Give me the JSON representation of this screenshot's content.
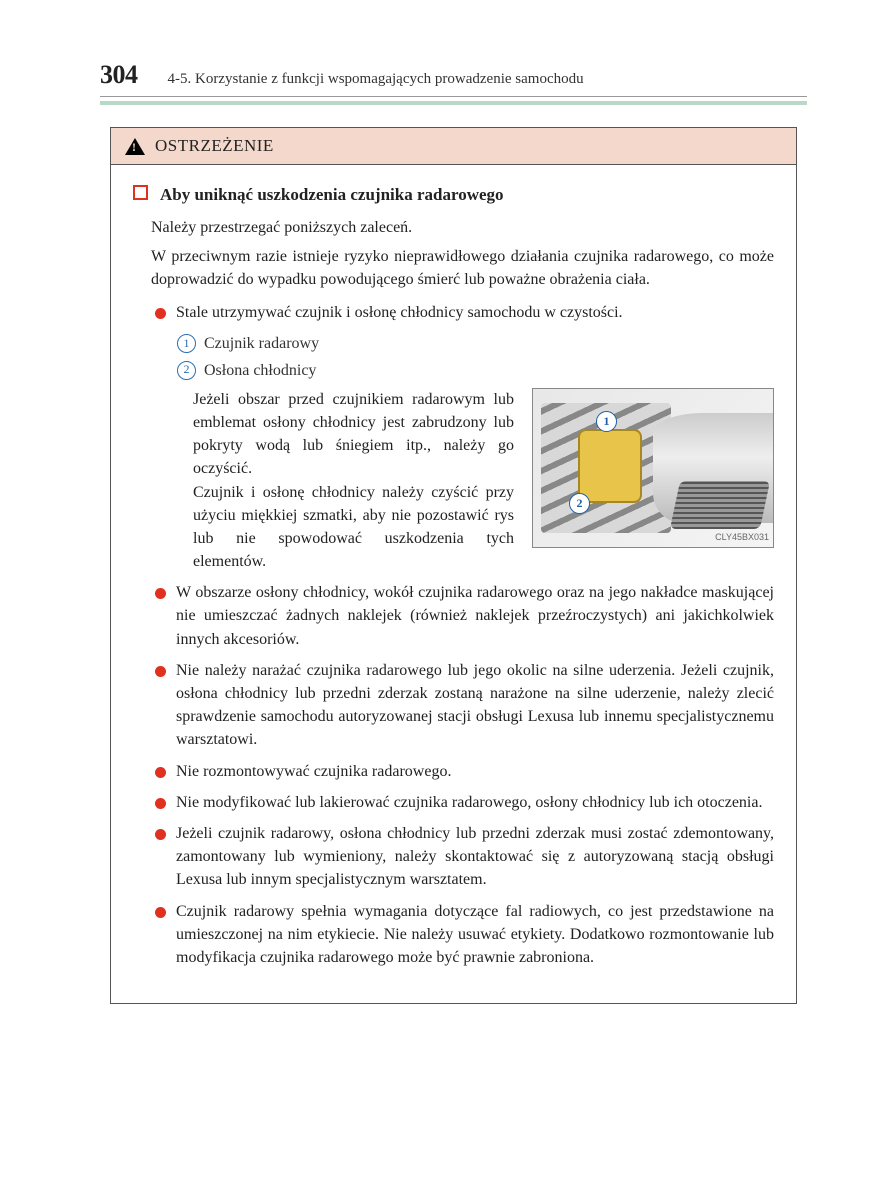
{
  "header": {
    "page_number": "304",
    "section": "4-5. Korzystanie z funkcji wspomagających prowadzenie samochodu"
  },
  "warning": {
    "label": "OSTRZEŻENIE",
    "topic_title": "Aby uniknąć uszkodzenia czujnika radarowego",
    "intro_1": "Należy przestrzegać poniższych zaleceń.",
    "intro_2": "W przeciwnym razie istnieje ryzyko nieprawidłowego działania czujnika radarowego, co może doprowadzić do wypadku powodującego śmierć lub poważne obrażenia ciała.",
    "bullets": {
      "b0": "Stale utrzymywać czujnik i osłonę chłodnicy samochodu w czystości.",
      "numbered": {
        "n1": "Czujnik radarowy",
        "n2": "Osłona chłodnicy"
      },
      "figure_text_1": "Jeżeli obszar przed czujnikiem radarowym lub emblemat osłony chłodnicy jest zabrudzony lub pokryty wodą lub śniegiem itp., należy go oczyścić.",
      "figure_text_2": "Czujnik i osłonę chłodnicy należy czyścić przy użyciu miękkiej szmatki, aby nie pozostawić rys lub nie spowodować uszkodzenia tych elementów.",
      "image_code": "CLY45BX031",
      "b1": "W obszarze osłony chłodnicy, wokół czujnika radarowego oraz na jego nakładce maskującej nie umieszczać żadnych naklejek (również naklejek przeźroczystych) ani jakichkolwiek innych akcesoriów.",
      "b2": "Nie należy narażać czujnika radarowego lub jego okolic na silne uderzenia. Jeżeli czujnik, osłona chłodnicy lub przedni zderzak zostaną narażone na silne uderzenie, należy zlecić sprawdzenie samochodu autoryzowanej stacji obsługi Lexusa lub innemu specjalistycznemu warsztatowi.",
      "b3": "Nie rozmontowywać czujnika radarowego.",
      "b4": "Nie modyfikować lub lakierować czujnika radarowego, osłony chłodnicy lub ich otoczenia.",
      "b5": "Jeżeli czujnik radarowy, osłona chłodnicy lub przedni zderzak musi zostać zdemontowany, zamontowany lub wymieniony, należy skontaktować się z autoryzowaną stacją obsługi Lexusa lub innym specjalistycznym warsztatem.",
      "b6": "Czujnik radarowy spełnia wymagania dotyczące fal radiowych, co jest przedstawione na umieszczonej na nim etykiecie. Nie należy usuwać etykiety. Dodatkowo rozmontowanie lub modyfikacja czujnika radarowego może być prawnie zabroniona."
    }
  },
  "colors": {
    "warning_bg": "#f3d8cb",
    "accent_strip": "#b8d8c8",
    "red_marker": "#e03020",
    "blue_num": "#2a6fb5"
  }
}
